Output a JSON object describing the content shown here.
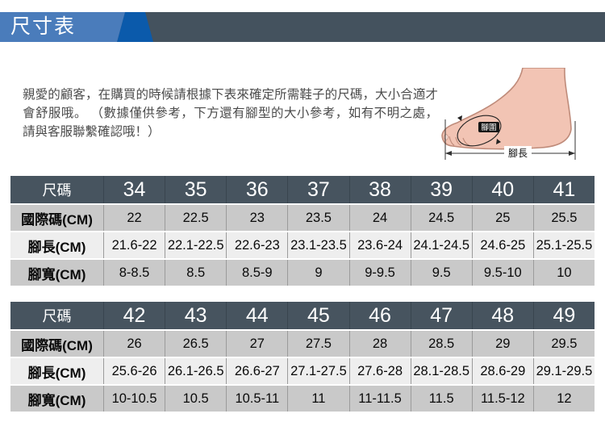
{
  "banner": {
    "title": "尺寸表"
  },
  "intro": {
    "text": "親愛的顧客，在購買的時候請根據下表來確定所需鞋子的尺碼，大小合適才會舒服哦。 （數據僅供參考，下方還有腳型的大小參考，如有不明之處，請與客服聯繫確認哦！）"
  },
  "foot_diagram": {
    "girth_label": "腳圍",
    "length_label": "腳長"
  },
  "tables": [
    {
      "rows": [
        {
          "label": "尺碼",
          "values": [
            "34",
            "35",
            "36",
            "37",
            "38",
            "39",
            "40",
            "41"
          ]
        },
        {
          "label": "國際碼(CM)",
          "values": [
            "22",
            "22.5",
            "23",
            "23.5",
            "24",
            "24.5",
            "25",
            "25.5"
          ]
        },
        {
          "label": "腳長(CM)",
          "values": [
            "21.6-22",
            "22.1-22.5",
            "22.6-23",
            "23.1-23.5",
            "23.6-24",
            "24.1-24.5",
            "24.6-25",
            "25.1-25.5"
          ]
        },
        {
          "label": "腳寬(CM)",
          "values": [
            "8-8.5",
            "8.5",
            "8.5-9",
            "9",
            "9-9.5",
            "9.5",
            "9.5-10",
            "10"
          ]
        }
      ]
    },
    {
      "rows": [
        {
          "label": "尺碼",
          "values": [
            "42",
            "43",
            "44",
            "45",
            "46",
            "47",
            "48",
            "49"
          ]
        },
        {
          "label": "國際碼(CM)",
          "values": [
            "26",
            "26.5",
            "27",
            "27.5",
            "28",
            "28.5",
            "29",
            "29.5"
          ]
        },
        {
          "label": "腳長(CM)",
          "values": [
            "25.6-26",
            "26.1-26.5",
            "26.6-27",
            "27.1-27.5",
            "27.6-28",
            "28.1-28.5",
            "28.6-29",
            "29.1-29.5"
          ]
        },
        {
          "label": "腳寬(CM)",
          "values": [
            "10-10.5",
            "10.5",
            "10.5-11",
            "11",
            "11-11.5",
            "11.5",
            "11.5-12",
            "12"
          ]
        }
      ]
    }
  ],
  "colors": {
    "banner_light_blue": "#4a7cbb",
    "banner_dark_blue": "#0b5aab",
    "banner_slate": "#44525e",
    "table_header": "#47545f",
    "row_gray": "#c9c9c9",
    "row_light": "#eeeeee",
    "foot_skin": "#f2c4b4",
    "foot_outline": "#bf8b7a"
  }
}
